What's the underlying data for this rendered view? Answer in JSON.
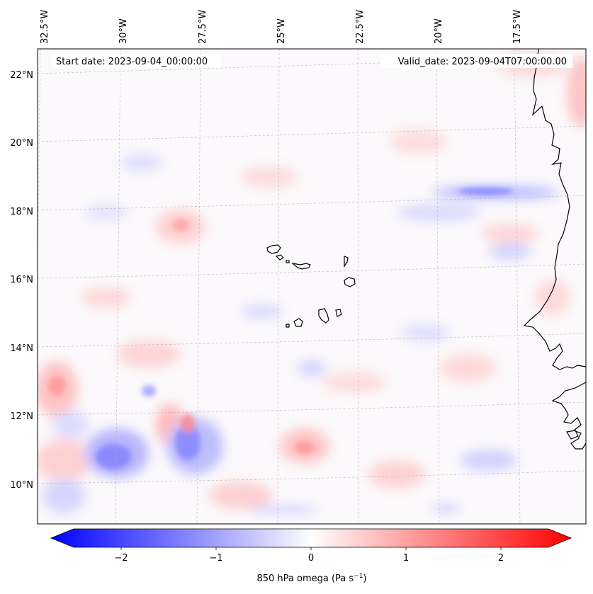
{
  "header": {
    "start_date": "Start date: 2023-09-04_00:00:00",
    "valid_date": "Valid_date: 2023-09-04T07:00:00.00"
  },
  "axes": {
    "lon_labels": [
      "32.5°W",
      "30°W",
      "27.5°W",
      "25°W",
      "22.5°W",
      "20°W",
      "17.5°W"
    ],
    "lat_labels": [
      "22°N",
      "20°N",
      "18°N",
      "16°N",
      "14°N",
      "12°N",
      "10°N"
    ]
  },
  "colorbar": {
    "ticks": [
      "−2",
      "−1",
      "0",
      "1",
      "2"
    ],
    "tick_values": [
      -2,
      -1,
      0,
      1,
      2
    ],
    "range": [
      -2.6,
      2.6
    ],
    "label_main": "850 hPa omega (Pa s",
    "label_exp": "−1",
    "label_close": ")",
    "colors": {
      "negative": "#0000ff",
      "zero": "#ffffff",
      "positive": "#ff0000"
    }
  },
  "map": {
    "extent_lon": [
      -32.9,
      -15.9
    ],
    "extent_lat": [
      8.9,
      22.8
    ],
    "grid": true,
    "coastlines": true,
    "field_colors": {
      "blue": "#7b7bff",
      "red": "#ff8a8a"
    }
  }
}
